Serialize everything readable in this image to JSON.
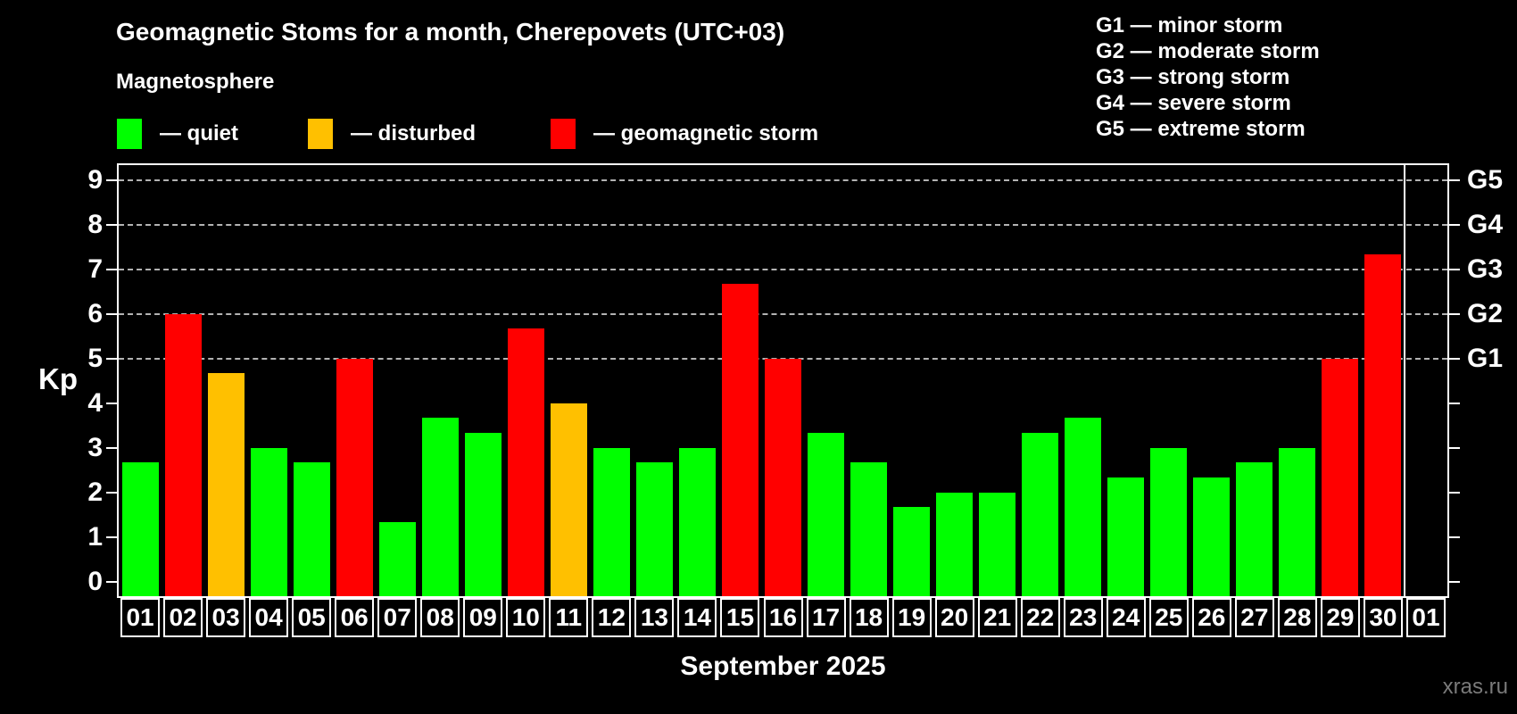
{
  "title": "Geomagnetic Stoms for a month, Cherepovets (UTC+03)",
  "subtitle": "Magnetosphere",
  "legend": {
    "quiet": "— quiet",
    "disturbed": "— disturbed",
    "storm": "— geomagnetic storm"
  },
  "g_scale": [
    "G1 — minor storm",
    "G2 — moderate storm",
    "G3 — strong storm",
    "G4 — severe storm",
    "G5 — extreme storm"
  ],
  "axis": {
    "y_label": "Kp",
    "x_label": "September 2025"
  },
  "watermark": "xras.ru",
  "colors": {
    "quiet": "#00ff00",
    "disturbed": "#ffc000",
    "storm": "#ff0000",
    "background": "#000000",
    "grid": "#b3b3b3",
    "text": "#ffffff",
    "watermark": "#7a7a7a"
  },
  "chart_data": {
    "type": "bar",
    "title": "Geomagnetic Stoms for a month, Cherepovets (UTC+03)",
    "categories": [
      "01",
      "02",
      "03",
      "04",
      "05",
      "06",
      "07",
      "08",
      "09",
      "10",
      "11",
      "12",
      "13",
      "14",
      "15",
      "16",
      "17",
      "18",
      "19",
      "20",
      "21",
      "22",
      "23",
      "24",
      "25",
      "26",
      "27",
      "28",
      "29",
      "30",
      "01"
    ],
    "values": [
      2.67,
      6,
      4.67,
      3,
      2.67,
      5,
      1.33,
      3.67,
      3.33,
      5.67,
      4,
      3,
      2.67,
      3,
      6.67,
      5,
      3.33,
      2.67,
      1.67,
      2,
      2,
      3.33,
      3.67,
      2.33,
      3,
      2.33,
      2.67,
      3,
      5,
      7.33,
      null
    ],
    "statuses": [
      "quiet",
      "storm",
      "disturbed",
      "quiet",
      "quiet",
      "storm",
      "quiet",
      "quiet",
      "quiet",
      "storm",
      "disturbed",
      "quiet",
      "quiet",
      "quiet",
      "storm",
      "storm",
      "quiet",
      "quiet",
      "quiet",
      "quiet",
      "quiet",
      "quiet",
      "quiet",
      "quiet",
      "quiet",
      "quiet",
      "quiet",
      "quiet",
      "storm",
      "storm",
      null
    ],
    "xlabel": "September 2025",
    "ylabel": "Kp",
    "ylim": [
      0,
      9
    ],
    "y_ticks": [
      0,
      1,
      2,
      3,
      4,
      5,
      6,
      7,
      8,
      9
    ],
    "gridlines_at": [
      5,
      6,
      7,
      8,
      9
    ],
    "right_axis": [
      {
        "label": "G1",
        "kp": 5
      },
      {
        "label": "G2",
        "kp": 6
      },
      {
        "label": "G3",
        "kp": 7
      },
      {
        "label": "G4",
        "kp": 8
      },
      {
        "label": "G5",
        "kp": 9
      }
    ],
    "grid": true,
    "legend_position": "top-left"
  }
}
